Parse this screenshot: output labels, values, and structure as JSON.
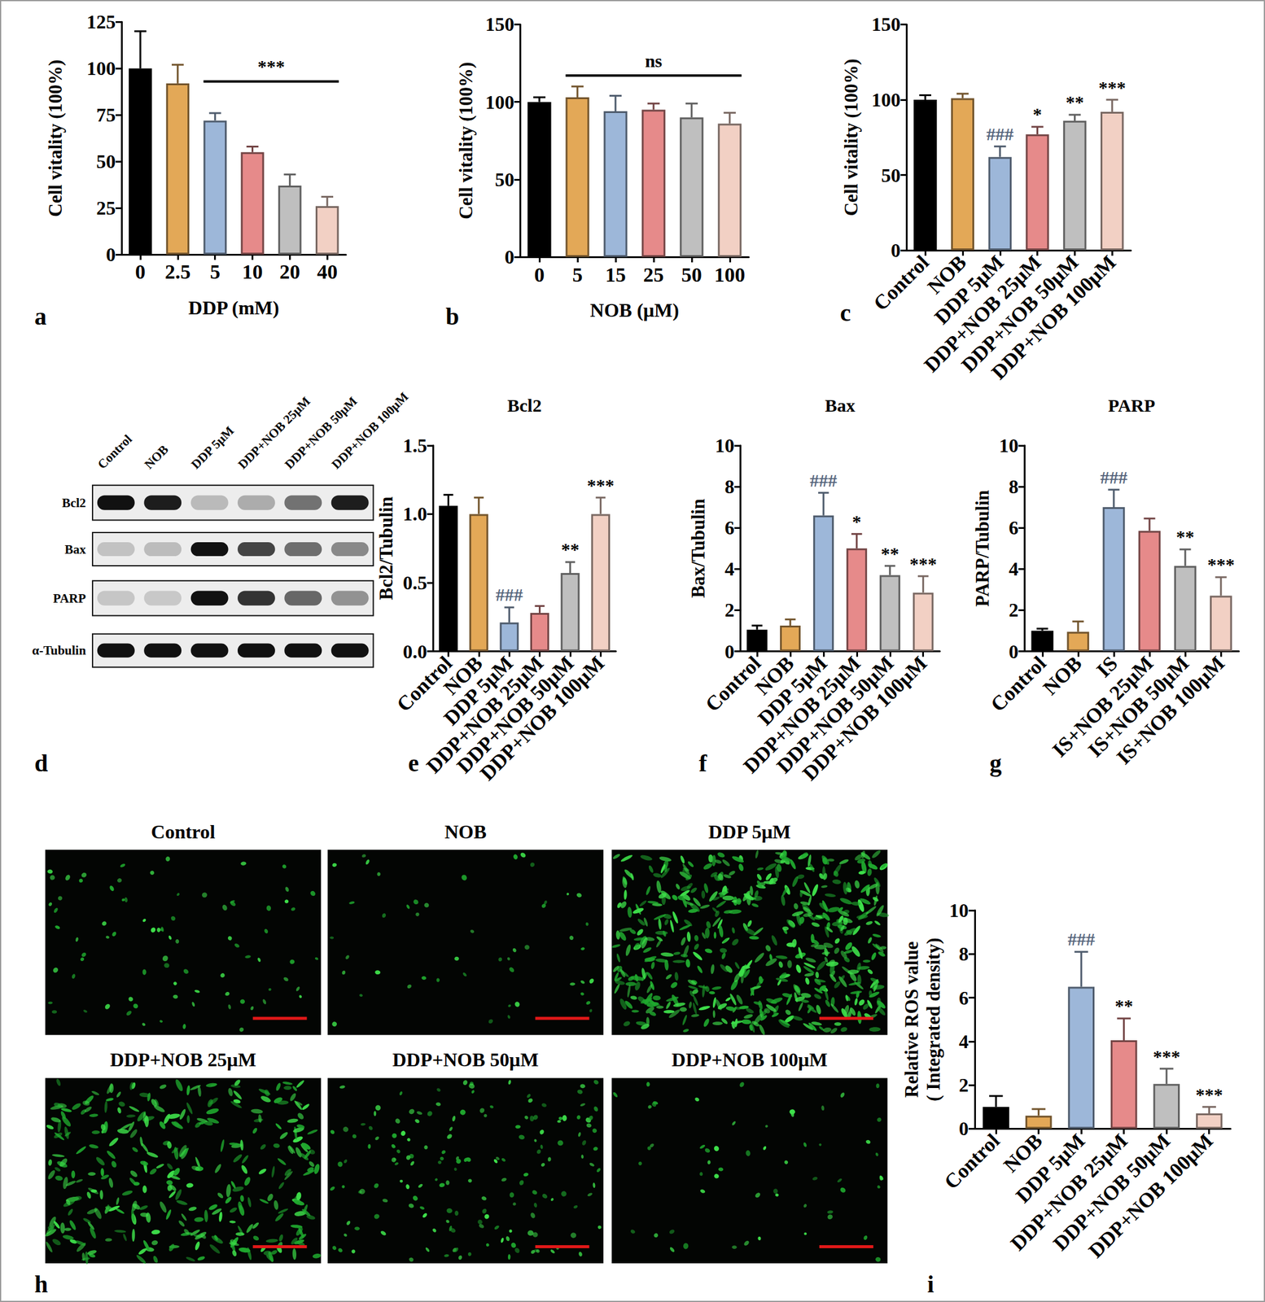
{
  "chart_data": [
    {
      "panel": "a",
      "type": "bar",
      "categories": [
        "0",
        "2.5",
        "5",
        "10",
        "20",
        "40"
      ],
      "values": [
        100,
        92,
        72,
        55,
        37,
        26
      ],
      "errors": [
        20,
        10,
        4,
        3,
        6,
        5
      ],
      "colors": [
        "#000000",
        "#E3A857",
        "#9DB7D9",
        "#E68A8A",
        "#BFBFBF",
        "#F2D0C4"
      ],
      "x_label": "DDP (mM)",
      "y_label": "Cell vitality (100%)",
      "ylim": [
        0,
        125
      ],
      "yticks": [
        0,
        25,
        50,
        75,
        100,
        125
      ],
      "grid": false,
      "bracket": {
        "from": "5",
        "to": "40",
        "y": 93,
        "label": "***"
      }
    },
    {
      "panel": "b",
      "type": "bar",
      "categories": [
        "0",
        "5",
        "15",
        "25",
        "50",
        "100"
      ],
      "values": [
        100,
        103,
        94,
        95,
        90,
        86
      ],
      "errors": [
        3,
        7,
        10,
        4,
        9,
        7
      ],
      "colors": [
        "#000000",
        "#E3A857",
        "#9DB7D9",
        "#E68A8A",
        "#BFBFBF",
        "#F2D0C4"
      ],
      "x_label": "NOB (μM)",
      "y_label": "Cell vitality (100%)",
      "ylim": [
        0,
        150
      ],
      "yticks": [
        0,
        50,
        100,
        150
      ],
      "grid": false,
      "bracket": {
        "from": "5",
        "to": "100",
        "y": 117,
        "label": "ns"
      }
    },
    {
      "panel": "c",
      "type": "bar",
      "categories": [
        "Control",
        "NOB",
        "DDP 5μM",
        "DDP+NOB 25μM",
        "DDP+NOB 50μM",
        "DDP+NOB 100μM"
      ],
      "values": [
        100,
        101,
        62,
        77,
        86,
        92
      ],
      "errors": [
        3,
        3,
        7,
        5,
        4,
        8
      ],
      "colors": [
        "#000000",
        "#E3A857",
        "#9DB7D9",
        "#E68A8A",
        "#BFBFBF",
        "#F2D0C4"
      ],
      "y_label": "Cell vitality (100%)",
      "ylim": [
        0,
        150
      ],
      "yticks": [
        0,
        50,
        100,
        150
      ],
      "grid": false,
      "annotations": [
        null,
        null,
        "###",
        "*",
        "**",
        "***"
      ]
    },
    {
      "panel": "e",
      "type": "bar",
      "title": "Bcl2",
      "categories": [
        "Control",
        "NOB",
        "DDP 5μM",
        "DDP+NOB 25μM",
        "DDP+NOB 50μM",
        "DDP+NOB 100μM"
      ],
      "values": [
        1.06,
        1.0,
        0.21,
        0.28,
        0.57,
        1.0
      ],
      "errors": [
        0.08,
        0.12,
        0.11,
        0.05,
        0.08,
        0.12
      ],
      "colors": [
        "#000000",
        "#E3A857",
        "#9DB7D9",
        "#E68A8A",
        "#BFBFBF",
        "#F2D0C4"
      ],
      "y_label": "Bcl2/Tubulin",
      "ylim": [
        0,
        1.5
      ],
      "yticks": [
        {
          "value": 0,
          "label": "0.0"
        },
        0.5,
        {
          "value": 1,
          "label": "1.0"
        },
        1.5
      ],
      "grid": false,
      "annotations": [
        null,
        null,
        "###",
        null,
        "**",
        "***"
      ]
    },
    {
      "panel": "f",
      "type": "bar",
      "title": "Bax",
      "categories": [
        "Control",
        "NOB",
        "DDP 5μM",
        "DDP+NOB 25μM",
        "DDP+NOB 50μM",
        "DDP+NOB 100μM"
      ],
      "values": [
        1.05,
        1.25,
        6.6,
        5.0,
        3.7,
        2.85
      ],
      "errors": [
        0.2,
        0.3,
        1.1,
        0.7,
        0.45,
        0.8
      ],
      "colors": [
        "#000000",
        "#E3A857",
        "#9DB7D9",
        "#E68A8A",
        "#BFBFBF",
        "#F2D0C4"
      ],
      "y_label": "Bax/Tubulin",
      "ylim": [
        0,
        10
      ],
      "yticks": [
        0,
        2,
        4,
        6,
        8,
        10
      ],
      "grid": false,
      "annotations": [
        null,
        null,
        "###",
        "*",
        "**",
        "***"
      ]
    },
    {
      "panel": "g",
      "type": "bar",
      "title": "PARP",
      "categories": [
        "Control",
        "NOB",
        "IS",
        "IS+NOB 25μM",
        "IS+NOB 50μM",
        "IS+NOB 100μM"
      ],
      "values": [
        1.0,
        0.95,
        7.0,
        5.85,
        4.15,
        2.7
      ],
      "errors": [
        0.1,
        0.5,
        0.85,
        0.6,
        0.8,
        0.9
      ],
      "colors": [
        "#000000",
        "#E3A857",
        "#9DB7D9",
        "#E68A8A",
        "#BFBFBF",
        "#F2D0C4"
      ],
      "y_label": "PARP/Tubulin",
      "ylim": [
        0,
        10
      ],
      "yticks": [
        0,
        2,
        4,
        6,
        8,
        10
      ],
      "grid": false,
      "annotations": [
        null,
        null,
        "###",
        null,
        "**",
        "***"
      ]
    },
    {
      "panel": "i",
      "type": "bar",
      "categories": [
        "Control",
        "NOB",
        "DDP 5μM",
        "DDP+NOB 25μM",
        "DDP+NOB 50μM",
        "DDP+NOB 100μM"
      ],
      "values": [
        1.0,
        0.6,
        6.5,
        4.05,
        2.05,
        0.7
      ],
      "errors": [
        0.5,
        0.3,
        1.6,
        1.0,
        0.7,
        0.3
      ],
      "colors": [
        "#000000",
        "#E3A857",
        "#9DB7D9",
        "#E68A8A",
        "#BFBFBF",
        "#F2D0C4"
      ],
      "y_label": "Relative ROS value\n( Integrated density)",
      "ylim": [
        0,
        10
      ],
      "yticks": [
        0,
        2,
        4,
        6,
        8,
        10
      ],
      "grid": false,
      "annotations": [
        null,
        null,
        "###",
        "**",
        "***",
        "***"
      ]
    }
  ],
  "blot": {
    "panel": "d",
    "lanes": [
      "Control",
      "NOB",
      "DDP 5μM",
      "DDP+NOB 25μM",
      "DDP+NOB 50μM",
      "DDP+NOB 100μM"
    ],
    "rows": [
      "Bcl2",
      "Bax",
      "PARP",
      "α-Tubulin"
    ]
  },
  "images": {
    "panel": "h",
    "titles": [
      "Control",
      "NOB",
      "DDP 5μM",
      "DDP+NOB 25μM",
      "DDP+NOB 50μM",
      "DDP+NOB 100μM"
    ]
  }
}
